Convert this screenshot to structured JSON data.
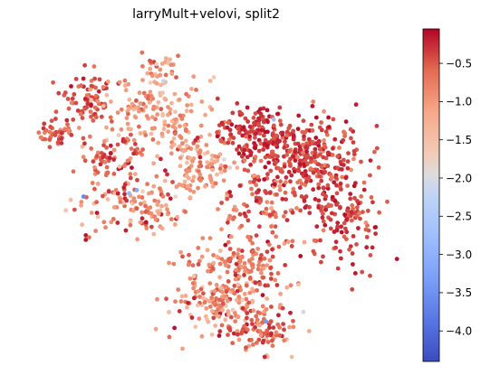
{
  "chart_data": {
    "type": "scatter",
    "title": "larryMult+velovi, split2",
    "xlabel": "",
    "ylabel": "",
    "axes_visible": false,
    "colormap": "coolwarm",
    "colorbar": {
      "range": [
        -4.4,
        -0.05
      ],
      "ticks": [
        -0.5,
        -1.0,
        -1.5,
        -2.0,
        -2.5,
        -3.0,
        -3.5,
        -4.0
      ],
      "tick_labels": [
        "−0.5",
        "−1.0",
        "−1.5",
        "−2.0",
        "−2.5",
        "−3.0",
        "−3.5",
        "−4.0"
      ]
    },
    "clusters": [
      {
        "cx": 0.09,
        "cy": 0.7,
        "sx": 0.025,
        "sy": 0.025,
        "n": 45,
        "mean": -0.55,
        "sd": 0.2
      },
      {
        "cx": 0.17,
        "cy": 0.81,
        "sx": 0.035,
        "sy": 0.04,
        "n": 70,
        "mean": -0.45,
        "sd": 0.2
      },
      {
        "cx": 0.33,
        "cy": 0.78,
        "sx": 0.07,
        "sy": 0.045,
        "n": 110,
        "mean": -1.0,
        "sd": 0.3
      },
      {
        "cx": 0.36,
        "cy": 0.89,
        "sx": 0.025,
        "sy": 0.025,
        "n": 30,
        "mean": -0.9,
        "sd": 0.3
      },
      {
        "cx": 0.24,
        "cy": 0.62,
        "sx": 0.05,
        "sy": 0.045,
        "n": 70,
        "mean": -0.6,
        "sd": 0.3
      },
      {
        "cx": 0.28,
        "cy": 0.47,
        "sx": 0.08,
        "sy": 0.05,
        "n": 130,
        "mean": -0.8,
        "sd": 0.4
      },
      {
        "cx": 0.46,
        "cy": 0.58,
        "sx": 0.06,
        "sy": 0.05,
        "n": 100,
        "mean": -1.0,
        "sd": 0.35
      },
      {
        "cx": 0.42,
        "cy": 0.7,
        "sx": 0.05,
        "sy": 0.05,
        "n": 60,
        "mean": -0.9,
        "sd": 0.3
      },
      {
        "cx": 0.62,
        "cy": 0.69,
        "sx": 0.06,
        "sy": 0.05,
        "n": 160,
        "mean": -0.3,
        "sd": 0.15
      },
      {
        "cx": 0.75,
        "cy": 0.62,
        "sx": 0.07,
        "sy": 0.07,
        "n": 260,
        "mean": -0.35,
        "sd": 0.2
      },
      {
        "cx": 0.84,
        "cy": 0.45,
        "sx": 0.05,
        "sy": 0.08,
        "n": 150,
        "mean": -0.35,
        "sd": 0.2
      },
      {
        "cx": 0.64,
        "cy": 0.48,
        "sx": 0.05,
        "sy": 0.06,
        "n": 90,
        "mean": -0.55,
        "sd": 0.3
      },
      {
        "cx": 0.57,
        "cy": 0.3,
        "sx": 0.07,
        "sy": 0.05,
        "n": 140,
        "mean": -0.75,
        "sd": 0.3
      },
      {
        "cx": 0.55,
        "cy": 0.16,
        "sx": 0.08,
        "sy": 0.06,
        "n": 220,
        "mean": -0.8,
        "sd": 0.4
      },
      {
        "cx": 0.62,
        "cy": 0.08,
        "sx": 0.04,
        "sy": 0.03,
        "n": 50,
        "mean": -0.5,
        "sd": 0.2
      }
    ],
    "outliers": [
      {
        "x": 0.16,
        "y": 0.5,
        "value": -3.6
      },
      {
        "x": 0.28,
        "y": 0.51,
        "value": -2.9
      },
      {
        "x": 0.3,
        "y": 0.52,
        "value": -3.1
      },
      {
        "x": 0.66,
        "y": 0.74,
        "value": -2.7
      },
      {
        "x": 0.64,
        "y": 0.11,
        "value": -3.4
      },
      {
        "x": 0.37,
        "y": 0.86,
        "value": -2.2
      }
    ]
  }
}
